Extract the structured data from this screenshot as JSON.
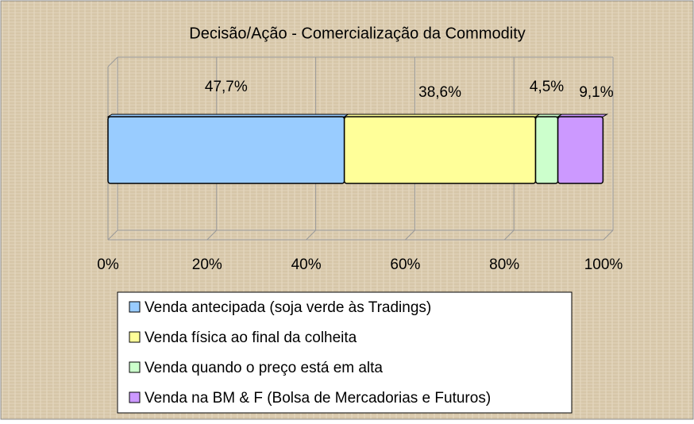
{
  "chart_data": {
    "type": "stacked-bar-horizontal",
    "title": "Decisão/Ação - Comercialização da Commodity",
    "series": [
      {
        "name": "Venda antecipada (soja verde às Tradings)",
        "color": "#99ccff",
        "values": [
          47.7
        ],
        "value_labels": [
          "47,7%"
        ]
      },
      {
        "name": "Venda física ao final da colheita",
        "color": "#ffff99",
        "values": [
          38.6
        ],
        "value_labels": [
          "38,6%"
        ]
      },
      {
        "name": "Venda quando o preço está em alta",
        "color": "#ccffcc",
        "values": [
          4.5
        ],
        "value_labels": [
          "4,5%"
        ]
      },
      {
        "name": "Venda na BM & F (Bolsa de Mercadorias e Futuros)",
        "color": "#cc99ff",
        "values": [
          9.1
        ],
        "value_labels": [
          "9,1%"
        ]
      }
    ],
    "xlim": [
      0,
      100
    ],
    "xticks": [
      {
        "value": 0,
        "label": "0%"
      },
      {
        "value": 20,
        "label": "20%"
      },
      {
        "value": 40,
        "label": "40%"
      },
      {
        "value": 60,
        "label": "60%"
      },
      {
        "value": 80,
        "label": "80%"
      },
      {
        "value": 100,
        "label": "100%"
      }
    ],
    "grid": true,
    "legend": "bottom"
  }
}
